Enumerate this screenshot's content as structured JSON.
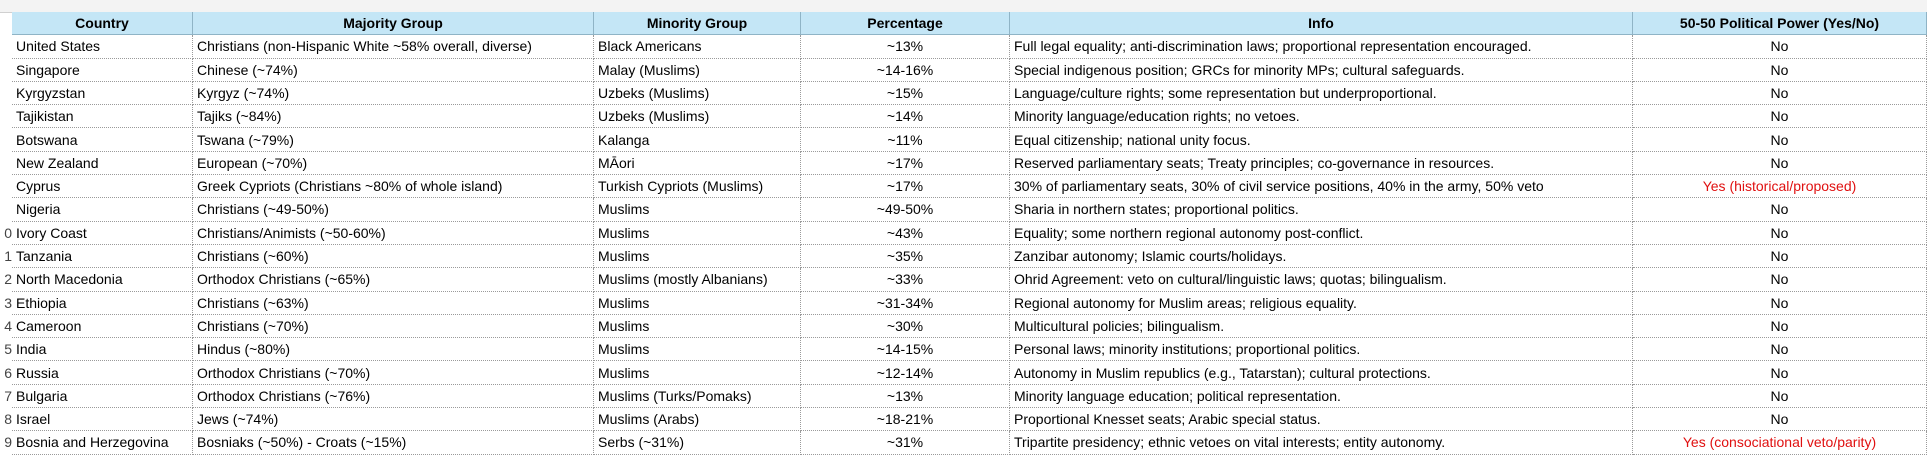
{
  "table": {
    "header": [
      "Country",
      "Majority Group",
      "Minority Group",
      "Percentage",
      "Info",
      "50-50 Political Power (Yes/No)"
    ],
    "rows": [
      [
        "United States",
        "Christians (non-Hispanic White ~58% overall, diverse)",
        "Black Americans",
        "~13%",
        "Full legal equality; anti-discrimination laws; proportional representation encouraged.",
        "No"
      ],
      [
        "Singapore",
        "Chinese (~74%)",
        "Malay (Muslims)",
        "~14-16%",
        "Special indigenous position; GRCs for minority MPs; cultural safeguards.",
        "No"
      ],
      [
        "Kyrgyzstan",
        "Kyrgyz (~74%)",
        "Uzbeks (Muslims)",
        "~15%",
        "Language/culture rights; some representation but underproportional.",
        "No"
      ],
      [
        "Tajikistan",
        "Tajiks (~84%)",
        "Uzbeks (Muslims)",
        "~14%",
        "Minority language/education rights; no vetoes.",
        "No"
      ],
      [
        "Botswana",
        "Tswana (~79%)",
        "Kalanga",
        "~11%",
        "Equal citizenship; national unity focus.",
        "No"
      ],
      [
        "New Zealand",
        "European (~70%)",
        "MĀori",
        "~17%",
        "Reserved parliamentary seats; Treaty principles; co-governance in resources.",
        "No"
      ],
      [
        "Cyprus",
        "Greek Cypriots (Christians ~80% of whole island)",
        "Turkish Cypriots (Muslims)",
        "~17%",
        "30% of parliamentary seats, 30% of civil service positions, 40% in the army, 50% veto",
        "Yes (historical/proposed)"
      ],
      [
        "Nigeria",
        "Christians (~49-50%)",
        "Muslims",
        "~49-50%",
        "Sharia in northern states; proportional politics.",
        "No"
      ],
      [
        "Ivory Coast",
        "Christians/Animists (~50-60%)",
        "Muslims",
        "~43%",
        "Equality; some northern regional autonomy post-conflict.",
        "No"
      ],
      [
        "Tanzania",
        "Christians (~60%)",
        "Muslims",
        "~35%",
        "Zanzibar autonomy; Islamic courts/holidays.",
        "No"
      ],
      [
        "North Macedonia",
        "Orthodox Christians (~65%)",
        "Muslims (mostly Albanians)",
        "~33%",
        "Ohrid Agreement: veto on cultural/linguistic laws; quotas; bilingualism.",
        "No"
      ],
      [
        "Ethiopia",
        "Christians (~63%)",
        "Muslims",
        "~31-34%",
        "Regional autonomy for Muslim areas; religious equality.",
        "No"
      ],
      [
        "Cameroon",
        "Christians (~70%)",
        "Muslims",
        "~30%",
        "Multicultural policies; bilingualism.",
        "No"
      ],
      [
        "India",
        "Hindus (~80%)",
        "Muslims",
        "~14-15%",
        "Personal laws; minority institutions; proportional politics.",
        "No"
      ],
      [
        "Russia",
        "Orthodox Christians (~70%)",
        "Muslims",
        "~12-14%",
        "Autonomy in Muslim republics (e.g., Tatarstan); cultural protections.",
        "No"
      ],
      [
        "Bulgaria",
        "Orthodox Christians (~76%)",
        "Muslims (Turks/Pomaks)",
        "~13%",
        "Minority language education; political representation.",
        "No"
      ],
      [
        "Israel",
        "Jews (~74%)",
        "Muslims (Arabs)",
        "~18-21%",
        "Proportional Knesset seats; Arabic special status.",
        "No"
      ],
      [
        "Bosnia and Herzegovina",
        "Bosniaks (~50%) - Croats (~15%)",
        "Serbs (~31%)",
        "~31%",
        "Tripartite presidency; ethnic vetoes on vital interests; entity autonomy.",
        "Yes (consociational veto/parity)"
      ]
    ],
    "row_number_fragments": [
      null,
      null,
      null,
      null,
      null,
      null,
      null,
      null,
      "0",
      "1",
      "2",
      "3",
      "4",
      "5",
      "6",
      "7",
      "8",
      "9"
    ],
    "power_colors": [
      "#000000",
      "#000000",
      "#000000",
      "#000000",
      "#000000",
      "#000000",
      "#e01010",
      "#000000",
      "#000000",
      "#000000",
      "#000000",
      "#000000",
      "#000000",
      "#000000",
      "#000000",
      "#000000",
      "#000000",
      "#e01010"
    ]
  }
}
